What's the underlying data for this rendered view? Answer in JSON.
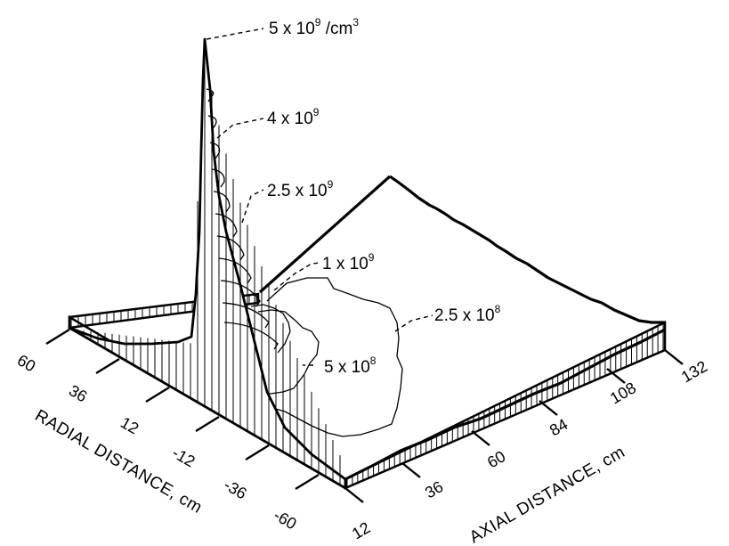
{
  "diagram": {
    "contour_labels": {
      "peak": {
        "base": "5 x 10",
        "exp": "9",
        "unit": " /cm",
        "unit_exp": "3"
      },
      "c4e9": {
        "base": "4 x 10",
        "exp": "9"
      },
      "c25e9": {
        "base": "2.5 x 10",
        "exp": "9"
      },
      "c1e9": {
        "base": "1 x 10",
        "exp": "9"
      },
      "c25e8": {
        "base": "2.5 x 10",
        "exp": "8"
      },
      "c5e8": {
        "base": "5 x 10",
        "exp": "8"
      }
    },
    "radial_axis": {
      "label": "RADIAL DISTANCE, cm",
      "ticks": [
        "60",
        "36",
        "12",
        "-12",
        "-36",
        "-60"
      ]
    },
    "axial_axis": {
      "label": "AXIAL DISTANCE, cm",
      "ticks": [
        "12",
        "36",
        "60",
        "84",
        "108",
        "132"
      ]
    }
  }
}
